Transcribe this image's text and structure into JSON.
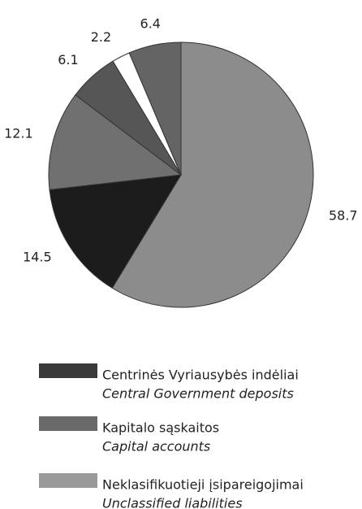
{
  "chart_data": {
    "type": "pie",
    "values": [
      58.7,
      14.5,
      12.1,
      6.1,
      2.2,
      6.4
    ],
    "colors": [
      "#8c8c8c",
      "#1c1c1c",
      "#707070",
      "#565656",
      "#ffffff",
      "#646464"
    ],
    "start_angle": 0,
    "direction": "clockwise",
    "legend": [
      {
        "name": "Centrinės Vyriausybės indėliai",
        "subtitle": "Central Government deposits",
        "color": "#3a3a3a"
      },
      {
        "name": "Kapitalo sąskaitos",
        "subtitle": "Capital accounts",
        "color": "#6a6a6a"
      },
      {
        "name": "Neklasifikuotieji įsipareigojimai",
        "subtitle": "Unclassified liabilities",
        "color": "#9a9a9a"
      }
    ]
  }
}
